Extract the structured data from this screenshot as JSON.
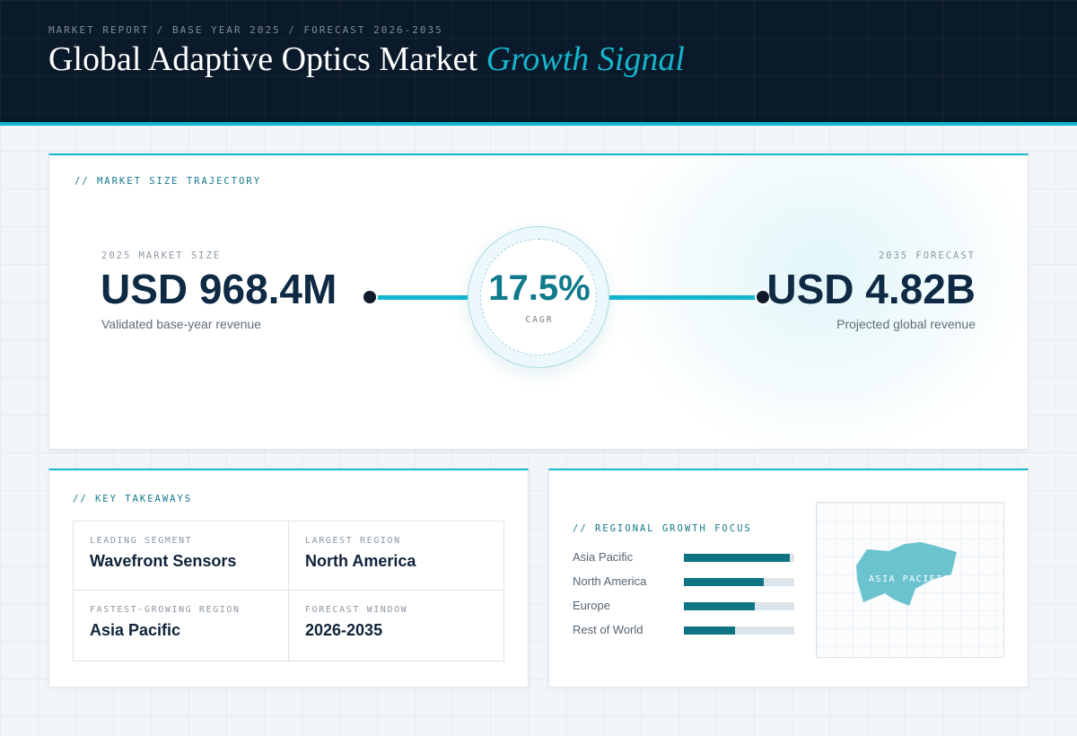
{
  "header": {
    "eyebrow": "MARKET REPORT / BASE YEAR 2025 / FORECAST 2026-2035",
    "title_main": "Global Adaptive Optics Market",
    "title_accent": "Growth Signal"
  },
  "trajectory": {
    "label": "// MARKET SIZE TRAJECTORY",
    "base": {
      "label": "2025 MARKET SIZE",
      "value": "USD 968.4M",
      "caption": "Validated base-year revenue"
    },
    "forecast": {
      "label": "2035 FORECAST",
      "value": "USD 4.82B",
      "caption": "Projected global revenue"
    },
    "cagr": {
      "value": "17.5%",
      "label": "CAGR"
    }
  },
  "takeaways": {
    "label": "// KEY TAKEAWAYS",
    "items": [
      {
        "label": "LEADING SEGMENT",
        "value": "Wavefront Sensors"
      },
      {
        "label": "LARGEST REGION",
        "value": "North America"
      },
      {
        "label": "FASTEST-GROWING REGION",
        "value": "Asia Pacific"
      },
      {
        "label": "FORECAST WINDOW",
        "value": "2026-2035"
      }
    ]
  },
  "regional": {
    "label": "// REGIONAL GROWTH FOCUS",
    "map_label": "ASIA PACIFIC"
  },
  "chart_data": {
    "type": "bar",
    "orientation": "horizontal",
    "categories": [
      "Asia Pacific",
      "North America",
      "Europe",
      "Rest of World"
    ],
    "values": [
      0.96,
      0.72,
      0.64,
      0.46
    ],
    "xlim": [
      0,
      1
    ],
    "colors": {
      "fill": "#0e7383",
      "track": "#dde5ec"
    }
  },
  "colors": {
    "accent": "#12b6cf",
    "navy": "#0b1a2a",
    "teal_dark": "#0e7383",
    "map_region": "#6cc3d0"
  }
}
